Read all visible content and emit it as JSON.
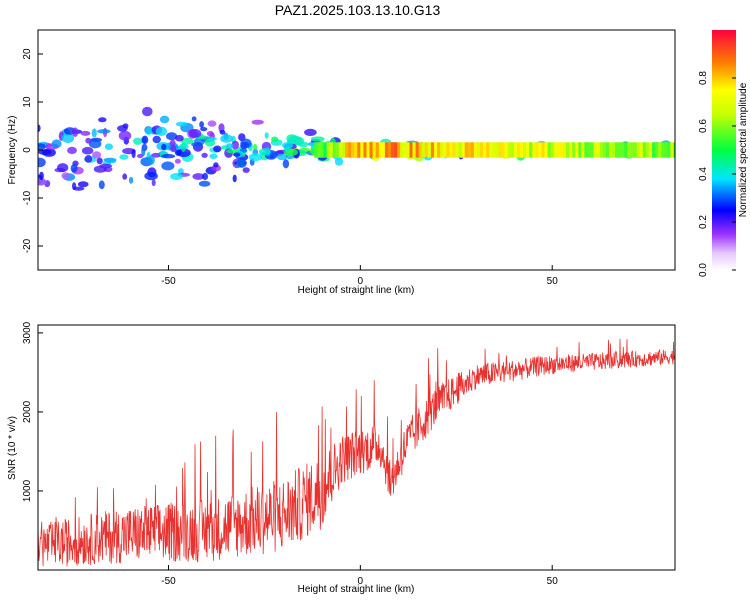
{
  "title": "PAZ1.2025.103.13.10.G13",
  "chart_data": [
    {
      "type": "heatmap",
      "xlabel": "Height of straight line (km)",
      "ylabel": "Frequency (Hz)",
      "xlim": [
        -84,
        82
      ],
      "ylim": [
        -25,
        25
      ],
      "x_ticks": [
        "-50",
        "0",
        "50"
      ],
      "y_ticks": [
        "20",
        "10",
        "0",
        "-10",
        "-20"
      ],
      "colorbar": {
        "label": "Normalized spectral amplitude",
        "range": [
          0,
          1
        ],
        "ticks": [
          "0.0",
          "0.2",
          "0.4",
          "0.6",
          "0.8"
        ]
      },
      "band": [
        {
          "x": -84,
          "spread": 11,
          "peak": 0.3
        },
        {
          "x": -60,
          "spread": 10,
          "peak": 0.35
        },
        {
          "x": -40,
          "spread": 9,
          "peak": 0.4
        },
        {
          "x": -25,
          "spread": 6,
          "peak": 0.45
        },
        {
          "x": -10,
          "spread": 3,
          "peak": 0.55
        },
        {
          "x": 0,
          "spread": 2,
          "peak": 0.85
        },
        {
          "x": 20,
          "spread": 1.5,
          "peak": 0.75
        },
        {
          "x": 40,
          "spread": 1.2,
          "peak": 0.7
        },
        {
          "x": 82,
          "spread": 1.2,
          "peak": 0.6
        }
      ]
    },
    {
      "type": "line",
      "xlabel": "Height of straight line (km)",
      "ylabel": "SNR (10 * v/v)",
      "xlim": [
        -84,
        82
      ],
      "ylim": [
        0,
        3100
      ],
      "x_ticks": [
        "-50",
        "0",
        "50"
      ],
      "y_ticks": [
        "3000",
        "2000",
        "1000"
      ],
      "color": "#e8322f",
      "trend": [
        {
          "x": -84,
          "mean": 300,
          "noise": 350
        },
        {
          "x": -60,
          "mean": 450,
          "noise": 450
        },
        {
          "x": -40,
          "mean": 500,
          "noise": 500
        },
        {
          "x": -20,
          "mean": 700,
          "noise": 600
        },
        {
          "x": -10,
          "mean": 1000,
          "noise": 600
        },
        {
          "x": -5,
          "mean": 1400,
          "noise": 400
        },
        {
          "x": 5,
          "mean": 1600,
          "noise": 350
        },
        {
          "x": 8,
          "mean": 1100,
          "noise": 300
        },
        {
          "x": 12,
          "mean": 1600,
          "noise": 350
        },
        {
          "x": 20,
          "mean": 2100,
          "noise": 300
        },
        {
          "x": 30,
          "mean": 2450,
          "noise": 200
        },
        {
          "x": 50,
          "mean": 2600,
          "noise": 150
        },
        {
          "x": 82,
          "mean": 2700,
          "noise": 120
        }
      ]
    }
  ]
}
